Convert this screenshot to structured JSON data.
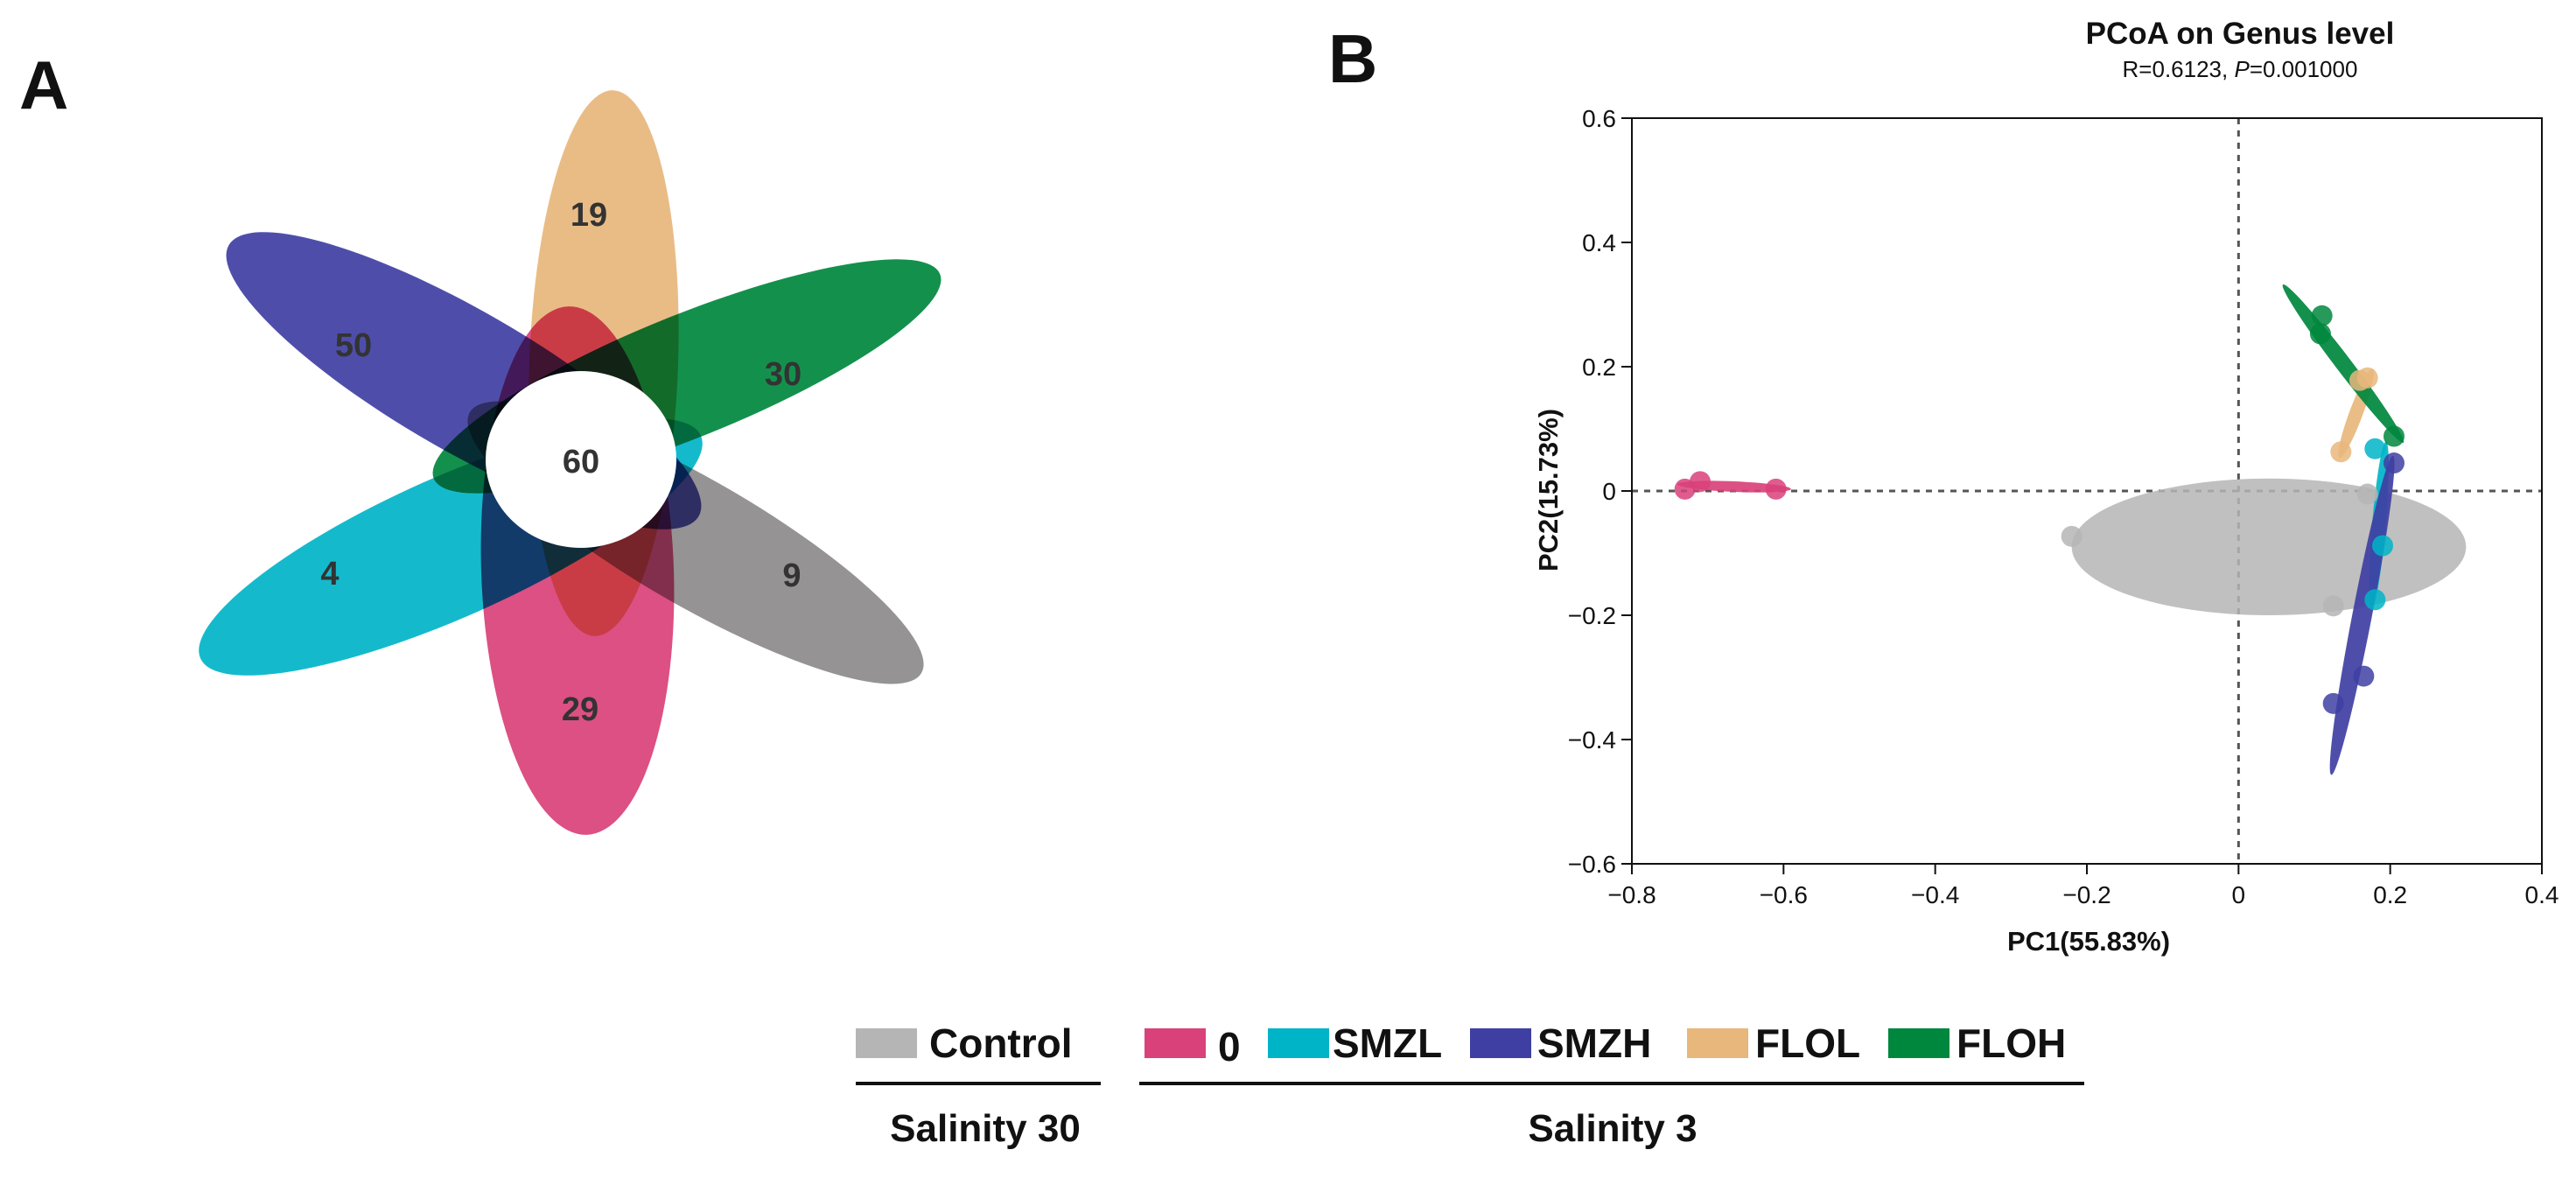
{
  "panels": {
    "a": "A",
    "b": "B"
  },
  "colors": {
    "control": "#b5b5b5",
    "s0": "#d9417a",
    "smzl": "#00b4c8",
    "smzh": "#3f3fa3",
    "flol": "#e8b77c",
    "floh": "#00873e"
  },
  "chart_data": [
    {
      "type": "venn",
      "panel": "A",
      "center": {
        "value": "60"
      },
      "petals": [
        {
          "group": "FLOL",
          "value": "19",
          "color": "#e8b77c"
        },
        {
          "group": "FLOH",
          "value": "30",
          "color": "#00873e"
        },
        {
          "group": "Control",
          "value": "9",
          "color": "#8c8a8a"
        },
        {
          "group": "0",
          "value": "29",
          "color": "#d9417a"
        },
        {
          "group": "SMZL",
          "value": "4",
          "color": "#00b4c8"
        },
        {
          "group": "SMZH",
          "value": "50",
          "color": "#3f3fa3"
        }
      ]
    },
    {
      "type": "scatter",
      "panel": "B",
      "title": "PCoA on Genus level",
      "subtitle_prefix": "R=0.6123, ",
      "subtitle_p": "P",
      "subtitle_suffix": "=0.001000",
      "xlabel": "PC1(55.83%)",
      "ylabel": "PC2(15.73%)",
      "xlim": [
        -0.8,
        0.4
      ],
      "ylim": [
        -0.6,
        0.6
      ],
      "xticks": [
        "−0.8",
        "−0.6",
        "−0.4",
        "−0.2",
        "0",
        "0.2",
        "0.4"
      ],
      "xtick_values": [
        -0.8,
        -0.6,
        -0.4,
        -0.2,
        0,
        0.2,
        0.4
      ],
      "yticks": [
        "0.6",
        "0.4",
        "0.2",
        "0",
        "−0.2",
        "−0.4",
        "−0.6"
      ],
      "ytick_values": [
        0.6,
        0.4,
        0.2,
        0,
        -0.2,
        -0.4,
        -0.6
      ],
      "reference_lines": {
        "x": 0,
        "y": 0
      },
      "series": [
        {
          "group": "Control",
          "color": "#b5b5b5",
          "points": [
            [
              -0.22,
              -0.073
            ],
            [
              0.17,
              -0.005
            ],
            [
              0.125,
              -0.185
            ]
          ],
          "ellipse": {
            "cx": 0.04,
            "cy": -0.09,
            "rx": 0.26,
            "ry": 0.11,
            "angle": 0
          }
        },
        {
          "group": "0",
          "color": "#d9417a",
          "points": [
            [
              -0.73,
              0.003
            ],
            [
              -0.71,
              0.015
            ],
            [
              -0.61,
              0.003
            ]
          ],
          "ellipse": {
            "cx": -0.665,
            "cy": 0.007,
            "rx": 0.075,
            "ry": 0.008,
            "angle": -3
          }
        },
        {
          "group": "SMZL",
          "color": "#00b4c8",
          "points": [
            [
              0.18,
              0.068
            ],
            [
              0.19,
              -0.088
            ],
            [
              0.18,
              -0.175
            ]
          ],
          "ellipse": {
            "cx": 0.185,
            "cy": -0.055,
            "rx": 0.135,
            "ry": 0.009,
            "angle": 86
          }
        },
        {
          "group": "SMZH",
          "color": "#3f3fa3",
          "points": [
            [
              0.205,
              0.045
            ],
            [
              0.165,
              -0.298
            ],
            [
              0.125,
              -0.342
            ]
          ],
          "ellipse": {
            "cx": 0.163,
            "cy": -0.2,
            "rx": 0.26,
            "ry": 0.013,
            "angle": 81
          }
        },
        {
          "group": "FLOL",
          "color": "#e8b77c",
          "points": [
            [
              0.135,
              0.063
            ],
            [
              0.16,
              0.178
            ],
            [
              0.17,
              0.182
            ]
          ],
          "ellipse": {
            "cx": 0.155,
            "cy": 0.125,
            "rx": 0.075,
            "ry": 0.009,
            "angle": 73
          }
        },
        {
          "group": "FLOH",
          "color": "#00873e",
          "points": [
            [
              0.11,
              0.282
            ],
            [
              0.108,
              0.253
            ],
            [
              0.205,
              0.088
            ]
          ],
          "ellipse": {
            "cx": 0.138,
            "cy": 0.205,
            "rx": 0.15,
            "ry": 0.011,
            "angle": -58
          }
        }
      ]
    }
  ],
  "legend": {
    "groups": [
      {
        "label": "Control",
        "color": "#b5b5b5"
      },
      {
        "label": "0",
        "color": "#d9417a"
      },
      {
        "label": "SMZL",
        "color": "#00b4c8"
      },
      {
        "label": "SMZH",
        "color": "#3f3fa3"
      },
      {
        "label": "FLOL",
        "color": "#e8b77c"
      },
      {
        "label": "FLOH",
        "color": "#00873e"
      }
    ],
    "brackets": [
      {
        "label": "Salinity 30"
      },
      {
        "label": "Salinity 3"
      }
    ]
  }
}
